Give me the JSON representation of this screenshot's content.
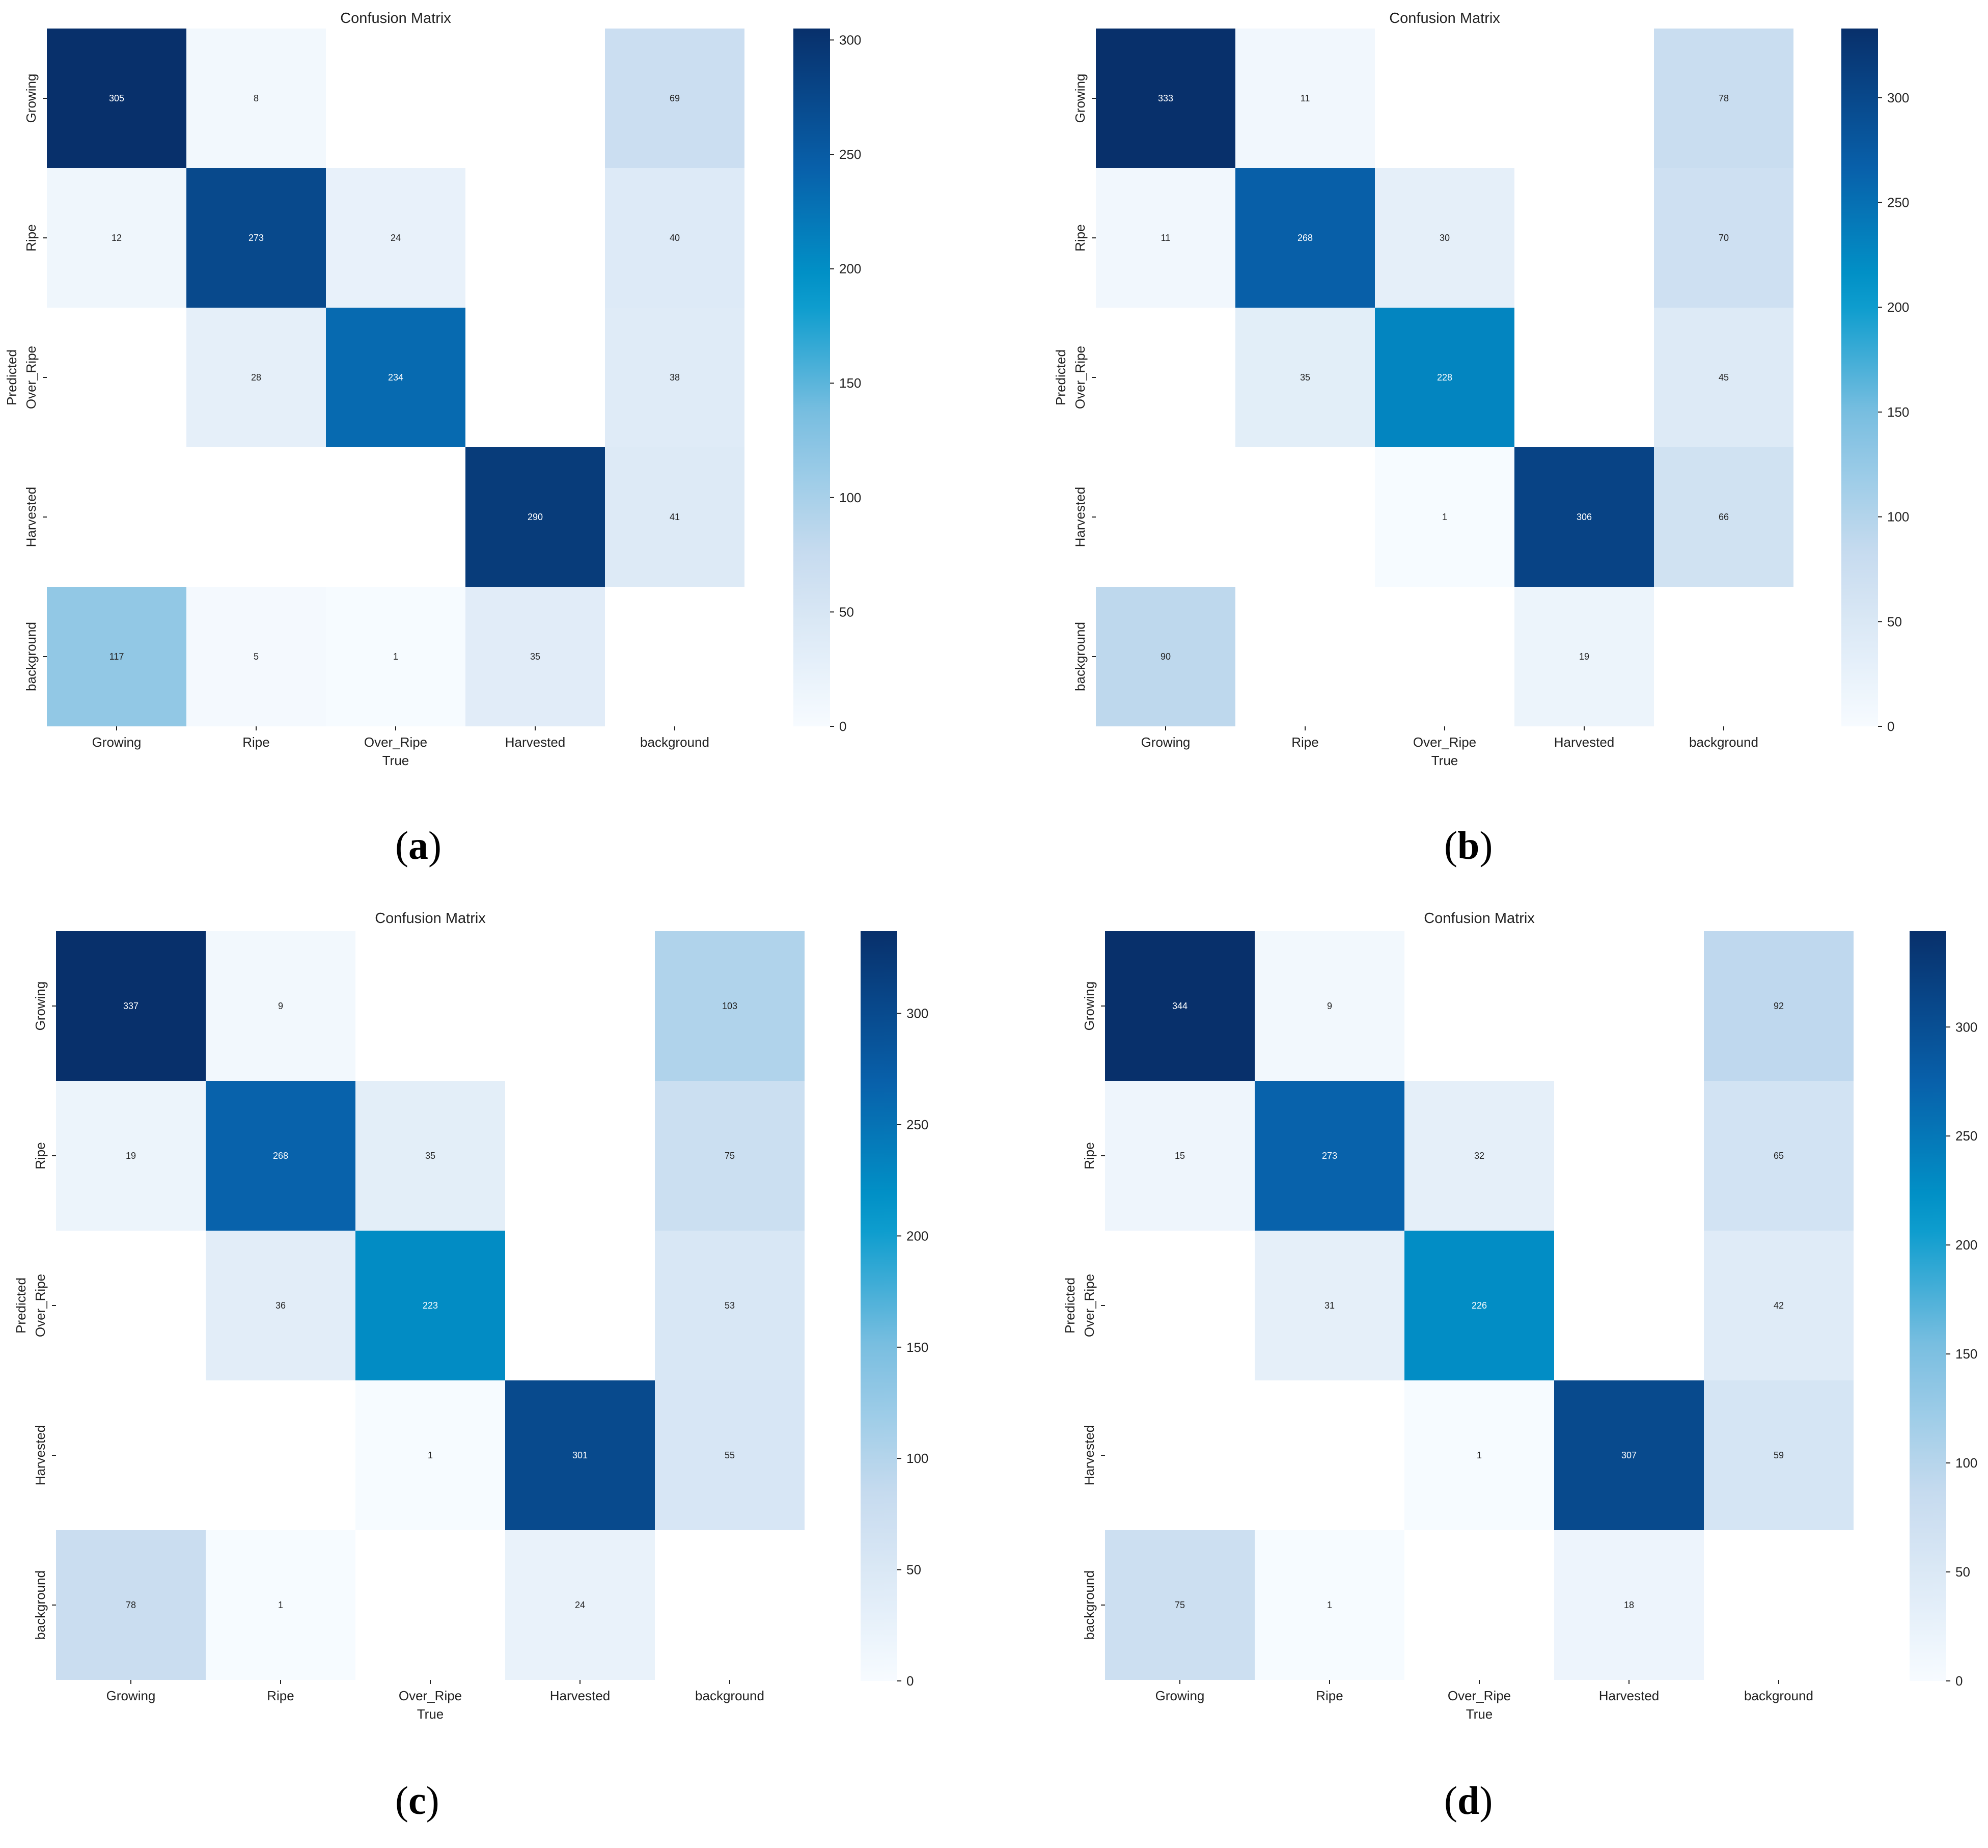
{
  "figure": {
    "panels": [
      {
        "caption_open": "(",
        "caption_letter": "a",
        "caption_close": ")"
      },
      {
        "caption_open": "(",
        "caption_letter": "b",
        "caption_close": ")"
      },
      {
        "caption_open": "(",
        "caption_letter": "c",
        "caption_close": ")"
      },
      {
        "caption_open": "(",
        "caption_letter": "d",
        "caption_close": ")"
      }
    ]
  },
  "colors": {
    "scale_light": "#f7fbff",
    "scale_mid": "#c6dbef",
    "scale_cyan": "#0099cc",
    "scale_dark": "#08306b",
    "text_dark": "#222222",
    "text_on_dark": "#ffffff"
  },
  "chart_data": [
    {
      "type": "heatmap",
      "title": "Confusion Matrix",
      "xlabel": "True",
      "ylabel": "Predicted",
      "x_categories": [
        "Growing",
        "Ripe",
        "Over_Ripe",
        "Harvested",
        "background"
      ],
      "y_categories": [
        "Growing",
        "Ripe",
        "Over_Ripe",
        "Harvested",
        "background"
      ],
      "matrix": [
        [
          305,
          8,
          null,
          null,
          69
        ],
        [
          12,
          273,
          24,
          null,
          40
        ],
        [
          null,
          28,
          234,
          null,
          38
        ],
        [
          null,
          null,
          null,
          290,
          41
        ],
        [
          117,
          5,
          1,
          35,
          null
        ]
      ],
      "colorbar": {
        "range": [
          0,
          305
        ],
        "ticks": [
          0,
          50,
          100,
          150,
          200,
          250,
          300
        ]
      }
    },
    {
      "type": "heatmap",
      "title": "Confusion Matrix",
      "xlabel": "True",
      "ylabel": "Predicted",
      "x_categories": [
        "Growing",
        "Ripe",
        "Over_Ripe",
        "Harvested",
        "background"
      ],
      "y_categories": [
        "Growing",
        "Ripe",
        "Over_Ripe",
        "Harvested",
        "background"
      ],
      "matrix": [
        [
          333,
          11,
          null,
          null,
          78
        ],
        [
          11,
          268,
          30,
          null,
          70
        ],
        [
          null,
          35,
          228,
          null,
          45
        ],
        [
          null,
          null,
          1,
          306,
          66
        ],
        [
          90,
          null,
          null,
          19,
          null
        ]
      ],
      "colorbar": {
        "range": [
          0,
          333
        ],
        "ticks": [
          0,
          50,
          100,
          150,
          200,
          250,
          300
        ]
      }
    },
    {
      "type": "heatmap",
      "title": "Confusion Matrix",
      "xlabel": "True",
      "ylabel": "Predicted",
      "x_categories": [
        "Growing",
        "Ripe",
        "Over_Ripe",
        "Harvested",
        "background"
      ],
      "y_categories": [
        "Growing",
        "Ripe",
        "Over_Ripe",
        "Harvested",
        "background"
      ],
      "matrix": [
        [
          337,
          9,
          null,
          null,
          103
        ],
        [
          19,
          268,
          35,
          null,
          75
        ],
        [
          null,
          36,
          223,
          null,
          53
        ],
        [
          null,
          null,
          1,
          301,
          55
        ],
        [
          78,
          1,
          null,
          24,
          null
        ]
      ],
      "colorbar": {
        "range": [
          0,
          337
        ],
        "ticks": [
          0,
          50,
          100,
          150,
          200,
          250,
          300
        ]
      }
    },
    {
      "type": "heatmap",
      "title": "Confusion Matrix",
      "xlabel": "True",
      "ylabel": "Predicted",
      "x_categories": [
        "Growing",
        "Ripe",
        "Over_Ripe",
        "Harvested",
        "background"
      ],
      "y_categories": [
        "Growing",
        "Ripe",
        "Over_Ripe",
        "Harvested",
        "background"
      ],
      "matrix": [
        [
          344,
          9,
          null,
          null,
          92
        ],
        [
          15,
          273,
          32,
          null,
          65
        ],
        [
          null,
          31,
          226,
          null,
          42
        ],
        [
          null,
          null,
          1,
          307,
          59
        ],
        [
          75,
          1,
          null,
          18,
          null
        ]
      ],
      "colorbar": {
        "range": [
          0,
          344
        ],
        "ticks": [
          0,
          50,
          100,
          150,
          200,
          250,
          300
        ]
      }
    }
  ]
}
